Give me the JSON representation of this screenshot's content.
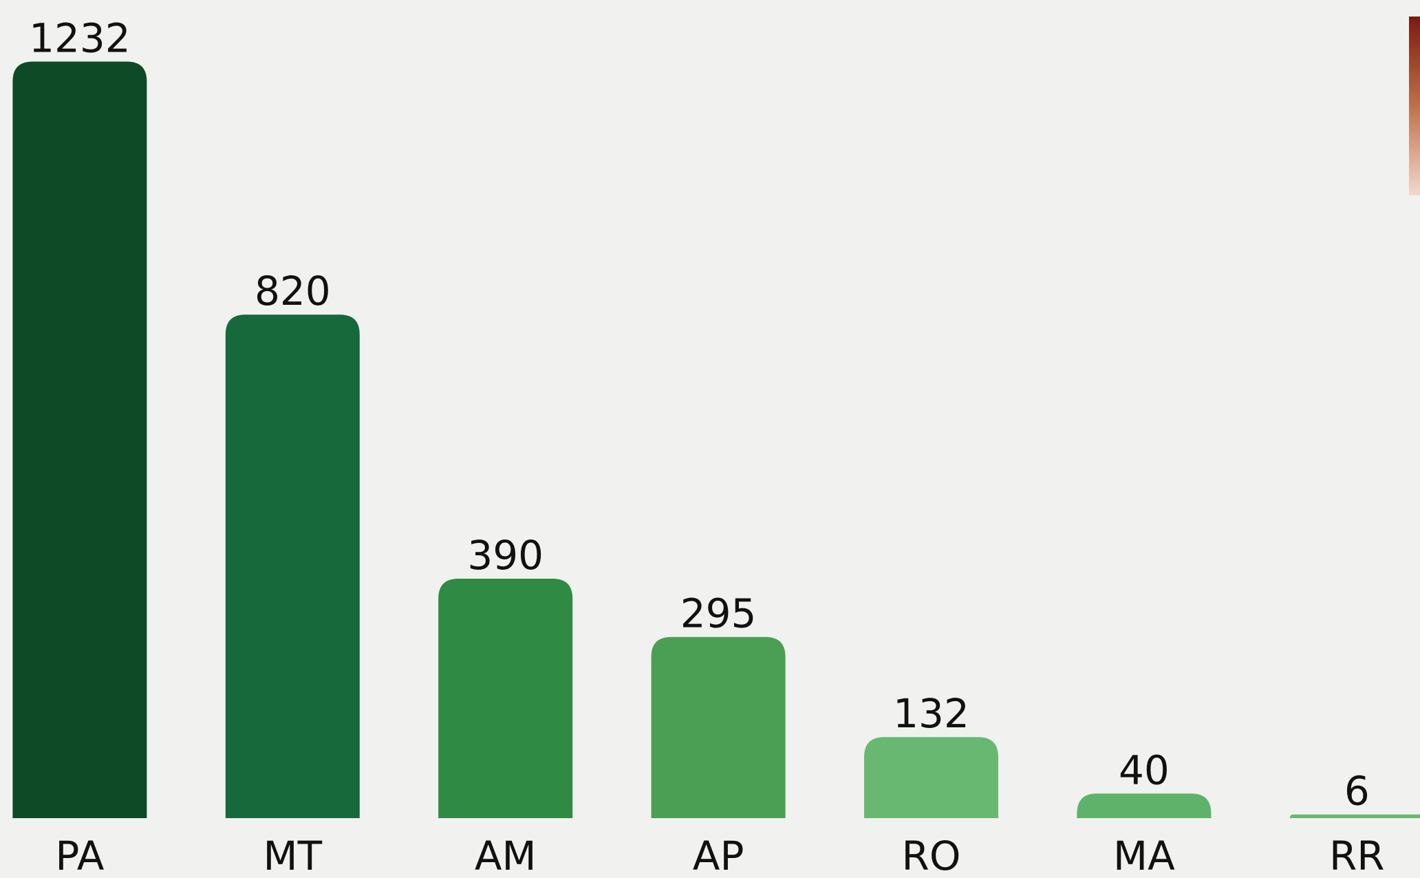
{
  "chart_data": {
    "type": "bar",
    "categories": [
      "PA",
      "MT",
      "AM",
      "AP",
      "RO",
      "MA",
      "RR"
    ],
    "values": [
      1232,
      820,
      390,
      295,
      132,
      40,
      6
    ],
    "colors": [
      "#0f4a26",
      "#17683a",
      "#2f8a43",
      "#4a9f55",
      "#68b872",
      "#5fb26a",
      "#6ab872"
    ]
  }
}
